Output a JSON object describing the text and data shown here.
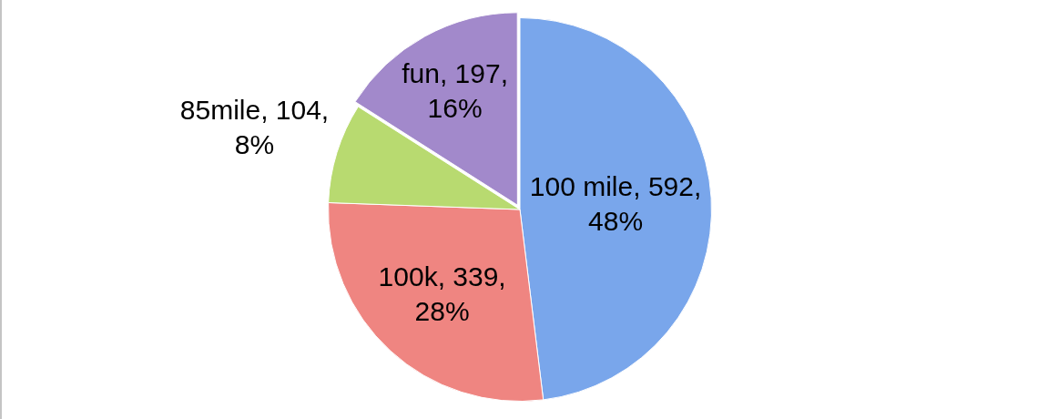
{
  "chart_data": {
    "type": "pie",
    "categories": [
      "100 mile",
      "100k",
      "85mile",
      "fun"
    ],
    "values": [
      592,
      339,
      104,
      197
    ],
    "colors": [
      "#79a6eb",
      "#ef8581",
      "#b8da70",
      "#a289cb"
    ],
    "value_labels": [
      "592, 48%",
      "339, 28%",
      "104, 8%",
      "197, 16%"
    ],
    "legend": false
  }
}
